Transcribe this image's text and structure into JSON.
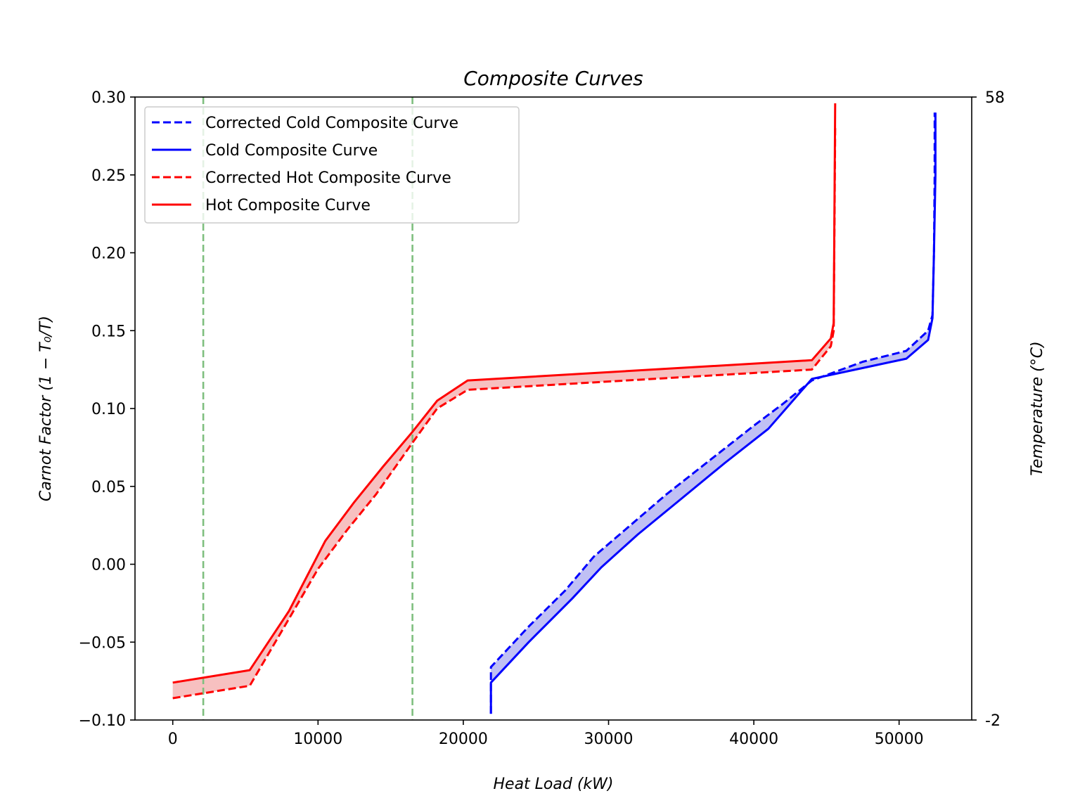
{
  "chart_data": {
    "type": "line",
    "title": "Composite Curves",
    "xlabel": "Heat Load (kW)",
    "ylabel": "Carnot Factor (1 − T₀/T)",
    "y2label": "Temperature (°C)",
    "xlim": [
      -2600,
      55000
    ],
    "ylim": [
      -0.1,
      0.3
    ],
    "y2lim": [
      -2,
      58
    ],
    "xticks": [
      0,
      10000,
      20000,
      30000,
      40000,
      50000
    ],
    "xtick_labels": [
      "0",
      "10000",
      "20000",
      "30000",
      "40000",
      "50000"
    ],
    "yticks": [
      -0.1,
      -0.05,
      0.0,
      0.05,
      0.1,
      0.15,
      0.2,
      0.25,
      0.3
    ],
    "ytick_labels": [
      "−0.10",
      "−0.05",
      "0.00",
      "0.05",
      "0.10",
      "0.15",
      "0.20",
      "0.25",
      "0.30"
    ],
    "y2ticks": [
      -2,
      58
    ],
    "y2tick_labels": [
      "-2",
      "58"
    ],
    "legend_position": "upper-left",
    "vlines": {
      "color": "#7fbf7f",
      "x": [
        2100,
        16500
      ]
    },
    "series": [
      {
        "name": "Corrected Cold Composite Curve",
        "color": "#0000ff",
        "dash": true,
        "x": [
          21900,
          21900,
          24500,
          27000,
          29000,
          31500,
          34000,
          37000,
          40000,
          42000,
          44000,
          47500,
          50500,
          52000,
          52300,
          52400,
          52450,
          52450
        ],
        "y": [
          -0.096,
          -0.066,
          -0.04,
          -0.017,
          0.005,
          0.025,
          0.045,
          0.067,
          0.089,
          0.103,
          0.118,
          0.13,
          0.137,
          0.15,
          0.16,
          0.2,
          0.25,
          0.29
        ]
      },
      {
        "name": "Cold Composite Curve",
        "color": "#0000ff",
        "dash": false,
        "x": [
          21900,
          21900,
          24500,
          27500,
          29500,
          32000,
          35000,
          38000,
          41000,
          44000,
          47500,
          50500,
          52000,
          52300,
          52400,
          52500,
          52500
        ],
        "y": [
          -0.096,
          -0.076,
          -0.05,
          -0.022,
          -0.002,
          0.019,
          0.042,
          0.065,
          0.087,
          0.119,
          0.126,
          0.132,
          0.144,
          0.158,
          0.2,
          0.25,
          0.29
        ]
      },
      {
        "name": "Corrected Hot Composite Curve",
        "color": "#ff0000",
        "dash": true,
        "x": [
          0,
          5300,
          8000,
          10000,
          12000,
          14000,
          16500,
          18200,
          20300,
          44000,
          45300,
          45500,
          45600
        ],
        "y": [
          -0.086,
          -0.078,
          -0.035,
          -0.003,
          0.022,
          0.045,
          0.078,
          0.1,
          0.112,
          0.125,
          0.14,
          0.15,
          0.28
        ]
      },
      {
        "name": "Hot Composite Curve",
        "color": "#ff0000",
        "dash": false,
        "x": [
          0,
          5300,
          8000,
          10500,
          12500,
          14500,
          16500,
          18200,
          20300,
          44000,
          45300,
          45500,
          45600
        ],
        "y": [
          -0.076,
          -0.068,
          -0.03,
          0.015,
          0.04,
          0.063,
          0.085,
          0.105,
          0.118,
          0.131,
          0.145,
          0.155,
          0.296
        ]
      }
    ]
  }
}
